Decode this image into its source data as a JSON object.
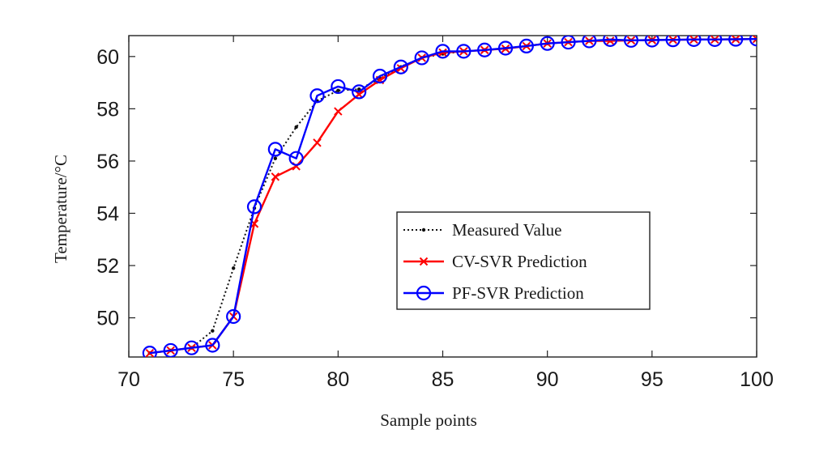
{
  "chart_data": {
    "type": "line",
    "title": "",
    "xlabel": "Sample points",
    "ylabel": "Temperature/°C",
    "xlim": [
      70,
      100
    ],
    "ylim": [
      48.5,
      60.8
    ],
    "xticks": [
      70,
      75,
      80,
      85,
      90,
      95,
      100
    ],
    "yticks": [
      50,
      52,
      54,
      56,
      58,
      60
    ],
    "x": [
      71,
      72,
      73,
      74,
      75,
      76,
      77,
      78,
      79,
      80,
      81,
      82,
      83,
      84,
      85,
      86,
      87,
      88,
      89,
      90,
      91,
      92,
      93,
      94,
      95,
      96,
      97,
      98,
      99,
      100
    ],
    "series": [
      {
        "name": "Measured Value",
        "color": "#111111",
        "line_style": "dotted",
        "marker": "dot",
        "values": [
          48.65,
          48.75,
          48.85,
          49.5,
          51.9,
          54.2,
          56.1,
          57.3,
          58.3,
          58.7,
          58.75,
          59.15,
          59.6,
          59.95,
          60.1,
          60.2,
          60.25,
          60.3,
          60.4,
          60.5,
          60.55,
          60.6,
          60.6,
          60.62,
          60.63,
          60.64,
          60.65,
          60.65,
          60.66,
          60.67
        ]
      },
      {
        "name": "CV-SVR Prediction",
        "color": "#ff0000",
        "line_style": "solid",
        "marker": "x",
        "values": [
          48.65,
          48.75,
          48.85,
          48.95,
          50.05,
          53.6,
          55.4,
          55.8,
          56.7,
          57.9,
          58.55,
          59.1,
          59.55,
          59.95,
          60.15,
          60.2,
          60.25,
          60.3,
          60.4,
          60.5,
          60.55,
          60.6,
          60.6,
          60.62,
          60.63,
          60.64,
          60.65,
          60.65,
          60.66,
          60.67
        ]
      },
      {
        "name": "PF-SVR Prediction",
        "color": "#0000ff",
        "line_style": "solid",
        "marker": "circle",
        "values": [
          48.65,
          48.75,
          48.85,
          48.95,
          50.05,
          54.25,
          56.45,
          56.1,
          58.5,
          58.85,
          58.65,
          59.25,
          59.6,
          59.95,
          60.2,
          60.2,
          60.25,
          60.32,
          60.4,
          60.5,
          60.55,
          60.6,
          60.65,
          60.62,
          60.63,
          60.64,
          60.65,
          60.65,
          60.66,
          60.67
        ]
      }
    ],
    "legend": "center-right",
    "grid": false
  }
}
